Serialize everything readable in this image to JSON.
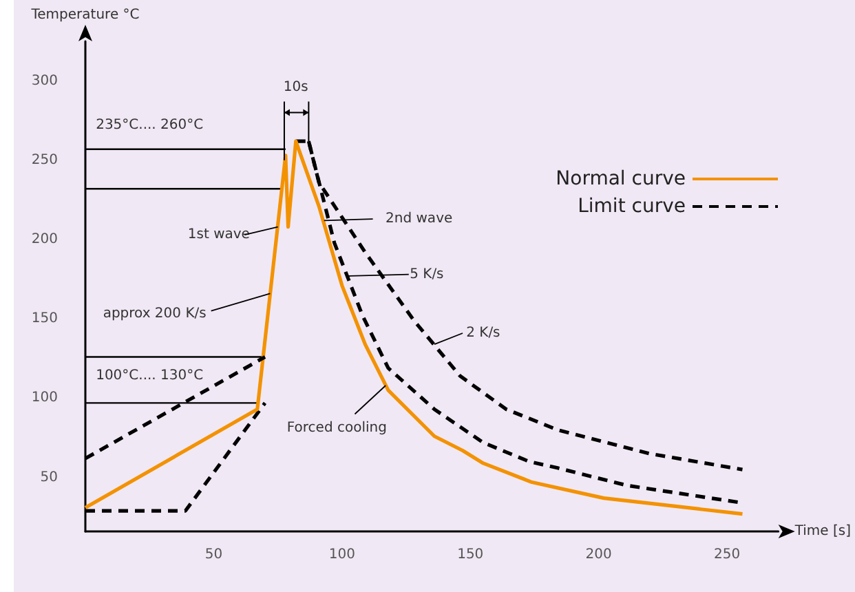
{
  "chart_data": {
    "type": "line",
    "xlabel": "Time [s]",
    "ylabel": "Temperature °C",
    "xlim": [
      0,
      270
    ],
    "xticks": [
      50,
      100,
      150,
      200,
      250
    ],
    "ylim": [
      16,
      325
    ],
    "yticks": [
      50,
      100,
      150,
      200,
      250,
      300
    ],
    "grid": false,
    "legend": "top right",
    "series": [
      {
        "name": "Normal curve",
        "color": "#f39200",
        "line_style": "solid",
        "x": [
          0,
          67,
          78,
          79,
          82,
          91,
          100,
          109,
          118,
          136,
          147,
          155,
          174,
          202,
          256
        ],
        "values": [
          31,
          93,
          253,
          208,
          262,
          221,
          171,
          134,
          105,
          76,
          67,
          59,
          47,
          37,
          27
        ]
      },
      {
        "name": "Limit curve",
        "color": "#000000",
        "line_style": "dashed",
        "x": [
          0,
          70
        ],
        "values": [
          62,
          126
        ]
      },
      {
        "color": "#000000",
        "line_style": "dashed",
        "x": [
          0,
          39,
          70
        ],
        "values": [
          29,
          29,
          97
        ]
      },
      {
        "color": "#000000",
        "line_style": "dashed",
        "x": [
          82,
          87,
          97,
          108,
          118,
          136,
          155,
          173,
          184,
          211,
          256
        ],
        "values": [
          262,
          262,
          198,
          152,
          119,
          93,
          72,
          60,
          56,
          45,
          34
        ]
      },
      {
        "color": "#000000",
        "line_style": "dashed",
        "x": [
          87,
          91,
          109,
          128,
          146,
          164,
          184,
          220,
          256
        ],
        "values": [
          262,
          236,
          192,
          149,
          114,
          93,
          80,
          65,
          55
        ]
      },
      {
        "color": "#000000",
        "line_style": "solid",
        "x": [
          0,
          78
        ],
        "values": [
          257,
          257
        ]
      },
      {
        "color": "#000000",
        "line_style": "solid",
        "x": [
          0,
          77
        ],
        "values": [
          232,
          232
        ]
      },
      {
        "color": "#000000",
        "line_style": "solid",
        "x": [
          0,
          70
        ],
        "values": [
          126,
          126
        ]
      },
      {
        "color": "#000000",
        "line_style": "solid",
        "x": [
          0,
          67
        ],
        "values": [
          97,
          97
        ]
      }
    ],
    "annotations": [
      "235°C.... 260°C",
      "100°C.... 130°C",
      {
        "text": "10s",
        "x": 87,
        "y": 262
      },
      {
        "text": "1st wave",
        "x": 75,
        "y": 208
      },
      "2nd wave",
      {
        "text": "approx 200 K/s",
        "x": 72,
        "y": 166
      },
      "5 K/s",
      {
        "text": "2 K/s",
        "x": 136,
        "y": 134
      },
      {
        "text": "Forced cooling",
        "x": 117,
        "y": 108
      }
    ]
  }
}
